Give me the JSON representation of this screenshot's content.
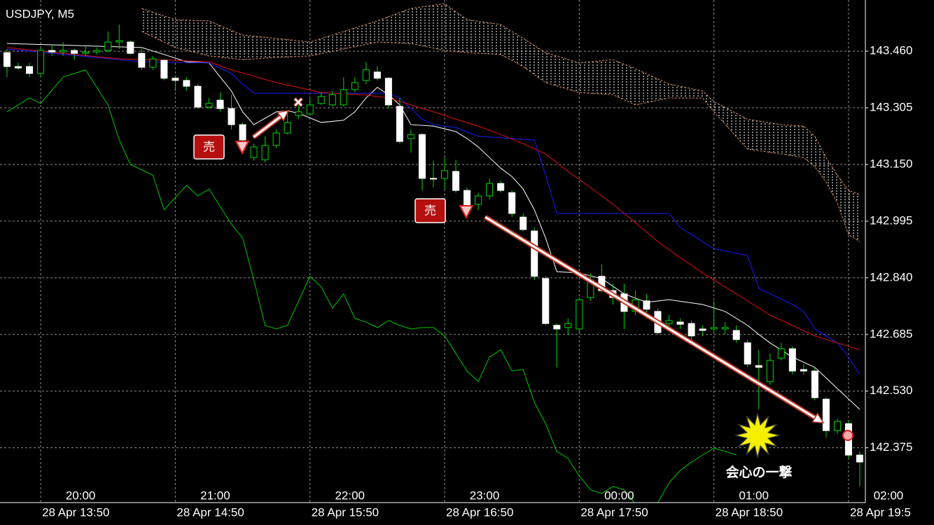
{
  "chart_data": {
    "type": "candlestick",
    "title": "USDJPY, M5",
    "categories": [
      null,
      null,
      null,
      "28 Apr 13:50",
      null,
      null,
      null,
      null,
      null,
      null,
      null,
      null,
      null,
      null,
      null,
      "28 Apr 14:50",
      null,
      null,
      null,
      null,
      null,
      null,
      null,
      null,
      null,
      null,
      null,
      "28 Apr 15:50",
      null,
      null,
      null,
      null,
      null,
      null,
      null,
      null,
      null,
      null,
      null,
      "28 Apr 16:50",
      null,
      null,
      null,
      null,
      null,
      null,
      null,
      null,
      null,
      null,
      null,
      "28 Apr 17:50",
      null,
      null,
      null,
      null,
      null,
      null,
      null,
      null,
      null,
      null,
      null,
      "28 Apr 18:50",
      null,
      null,
      null,
      null,
      null,
      null,
      null,
      null,
      null,
      null,
      null,
      "28 Apr 19:5",
      null
    ],
    "categories_upper": [
      null,
      null,
      null,
      "20:00",
      null,
      null,
      null,
      null,
      null,
      null,
      null,
      null,
      null,
      null,
      null,
      "21:00",
      null,
      null,
      null,
      null,
      null,
      null,
      null,
      null,
      null,
      null,
      null,
      "22:00",
      null,
      null,
      null,
      null,
      null,
      null,
      null,
      null,
      null,
      null,
      null,
      "23:00",
      null,
      null,
      null,
      null,
      null,
      null,
      null,
      null,
      null,
      null,
      null,
      "00:00",
      null,
      null,
      null,
      null,
      null,
      null,
      null,
      null,
      null,
      null,
      null,
      "01:00",
      null,
      null,
      null,
      null,
      null,
      null,
      null,
      null,
      null,
      null,
      null,
      "02:00",
      null
    ],
    "open": [
      143.456,
      143.418,
      143.418,
      143.399,
      143.462,
      143.458,
      143.462,
      143.454,
      143.458,
      143.462,
      143.485,
      143.485,
      143.454,
      143.416,
      143.435,
      143.386,
      143.38,
      143.364,
      143.307,
      143.326,
      143.303,
      143.259,
      143.169,
      143.163,
      143.202,
      143.236,
      143.284,
      143.288,
      143.317,
      143.313,
      143.313,
      143.355,
      143.38,
      143.403,
      143.386,
      143.309,
      143.221,
      143.232,
      143.112,
      143.112,
      143.131,
      143.079,
      143.041,
      143.064,
      143.098,
      143.073,
      143.006,
      142.968,
      142.838,
      142.71,
      142.704,
      142.7,
      142.786,
      142.844,
      142.805,
      142.796,
      142.748,
      142.777,
      142.748,
      142.715,
      142.719,
      142.715,
      142.7,
      142.7,
      142.7,
      142.696,
      142.662,
      142.6,
      142.556,
      142.62,
      142.646,
      142.589,
      142.585,
      142.508,
      142.422,
      142.441,
      142.355
    ],
    "high": [
      143.466,
      143.428,
      143.428,
      143.47,
      143.476,
      143.485,
      143.466,
      143.476,
      143.47,
      143.514,
      143.533,
      143.489,
      143.466,
      143.447,
      143.437,
      143.393,
      143.389,
      143.37,
      143.332,
      143.347,
      143.341,
      143.265,
      143.207,
      143.227,
      143.246,
      143.294,
      143.313,
      143.332,
      143.347,
      143.351,
      143.389,
      143.389,
      143.431,
      143.418,
      143.389,
      143.332,
      143.246,
      143.236,
      143.16,
      143.169,
      143.163,
      143.087,
      143.073,
      143.112,
      143.106,
      143.079,
      143.016,
      142.978,
      142.844,
      142.715,
      142.729,
      142.786,
      142.853,
      142.876,
      142.824,
      142.824,
      142.805,
      142.796,
      142.757,
      142.738,
      142.729,
      142.723,
      142.71,
      142.777,
      142.719,
      142.71,
      142.671,
      142.643,
      142.633,
      142.662,
      142.652,
      142.604,
      142.595,
      142.512,
      142.455,
      142.451,
      142.365
    ],
    "low": [
      143.389,
      143.409,
      143.389,
      143.389,
      143.447,
      143.447,
      143.437,
      143.447,
      143.451,
      143.456,
      143.466,
      143.451,
      143.409,
      143.409,
      143.38,
      143.351,
      143.351,
      143.303,
      143.303,
      143.294,
      143.246,
      143.188,
      143.16,
      143.156,
      143.194,
      143.232,
      143.274,
      143.284,
      143.313,
      143.309,
      143.309,
      143.347,
      143.37,
      143.38,
      143.303,
      143.207,
      143.183,
      143.079,
      143.087,
      143.083,
      143.073,
      143.026,
      143.026,
      143.054,
      143.073,
      143.006,
      142.968,
      142.834,
      142.71,
      142.595,
      142.685,
      142.69,
      142.777,
      142.8,
      142.767,
      142.7,
      142.738,
      142.729,
      142.685,
      142.7,
      142.7,
      142.671,
      142.681,
      142.69,
      142.685,
      142.662,
      142.595,
      142.48,
      142.547,
      142.614,
      142.575,
      142.575,
      142.505,
      142.403,
      142.413,
      142.346,
      142.269
    ],
    "close": [
      143.418,
      143.414,
      143.399,
      143.462,
      143.458,
      143.462,
      143.454,
      143.458,
      143.462,
      143.485,
      143.489,
      143.454,
      143.416,
      143.439,
      143.386,
      143.38,
      143.364,
      143.307,
      143.317,
      143.303,
      143.259,
      143.217,
      143.198,
      143.202,
      143.236,
      143.265,
      143.294,
      143.313,
      143.336,
      143.341,
      143.355,
      143.374,
      143.409,
      143.386,
      143.313,
      143.213,
      143.232,
      143.112,
      143.11,
      143.133,
      143.079,
      143.035,
      143.064,
      143.098,
      143.079,
      143.016,
      142.972,
      142.844,
      142.715,
      142.7,
      142.715,
      142.78,
      142.834,
      142.805,
      142.786,
      142.748,
      142.78,
      142.754,
      142.69,
      142.723,
      142.713,
      142.681,
      142.696,
      142.704,
      142.704,
      142.671,
      142.604,
      142.595,
      142.614,
      142.646,
      142.585,
      142.585,
      142.512,
      142.422,
      142.447,
      142.355,
      142.336
    ],
    "up_color": "#000000",
    "down_color": "#ffffff",
    "wick_color": "#00d800",
    "lines": [
      {
        "color": "#ffffff",
        "x": [
          0,
          12,
          14,
          16,
          18,
          20,
          21,
          22,
          24,
          25,
          26,
          28,
          30,
          31,
          32,
          33,
          34,
          35,
          36,
          38,
          40,
          41,
          42,
          43,
          44,
          45,
          46,
          47,
          48,
          49,
          51,
          53,
          55,
          57,
          59,
          62,
          64,
          66,
          67,
          68,
          70,
          72,
          74,
          76
        ],
        "values": [
          143.481,
          143.47,
          143.451,
          143.431,
          143.428,
          143.351,
          143.294,
          143.259,
          143.294,
          143.297,
          143.29,
          143.265,
          143.271,
          143.294,
          143.332,
          143.361,
          143.341,
          143.313,
          143.259,
          143.255,
          143.24,
          143.221,
          143.198,
          143.169,
          143.14,
          143.117,
          143.083,
          143.026,
          142.949,
          142.857,
          142.853,
          142.838,
          142.796,
          142.773,
          142.78,
          142.767,
          142.748,
          142.71,
          142.685,
          142.662,
          142.623,
          142.595,
          142.537,
          142.48
        ]
      },
      {
        "color": "#1a1aff",
        "x": [
          0,
          12,
          18,
          20,
          21,
          22,
          34,
          35,
          36,
          37,
          38,
          40,
          42,
          47,
          48,
          49,
          59,
          60,
          62,
          63,
          66,
          67,
          70,
          71,
          72,
          74,
          75,
          76
        ],
        "values": [
          143.466,
          143.431,
          143.428,
          143.399,
          143.37,
          143.345,
          143.345,
          143.332,
          143.303,
          143.274,
          143.259,
          143.251,
          143.227,
          143.217,
          143.121,
          143.016,
          143.016,
          142.978,
          142.939,
          142.92,
          142.901,
          142.811,
          142.767,
          142.748,
          142.7,
          142.662,
          142.623,
          142.575
        ]
      },
      {
        "color": "#e01010",
        "x": [
          0,
          5,
          10,
          15,
          18,
          20,
          24,
          28,
          32,
          34,
          36,
          38,
          40,
          42,
          44,
          46,
          48,
          50,
          52,
          54,
          56,
          58,
          60,
          62,
          64,
          66,
          68,
          70,
          72,
          74,
          76
        ],
        "values": [
          143.47,
          143.454,
          143.439,
          143.435,
          143.431,
          143.409,
          143.374,
          143.347,
          143.34,
          143.332,
          143.313,
          143.294,
          143.274,
          143.255,
          143.232,
          143.207,
          143.179,
          143.131,
          143.087,
          143.041,
          142.991,
          142.939,
          142.895,
          142.853,
          142.815,
          142.777,
          142.738,
          142.71,
          142.681,
          142.662,
          142.643
        ]
      },
      {
        "color": "#00c800",
        "x": [
          0,
          2,
          3,
          5,
          7,
          9,
          10,
          11,
          13,
          14,
          16,
          17,
          18,
          20,
          21,
          22,
          23,
          24,
          25,
          26,
          27,
          28,
          29,
          30,
          31,
          32,
          33,
          34,
          35,
          36,
          37,
          38,
          39,
          40,
          41,
          42,
          43,
          44,
          45,
          46,
          47,
          48,
          49,
          50,
          51,
          52,
          53,
          54,
          55,
          56,
          57,
          58,
          59,
          60,
          61,
          62,
          63,
          64,
          65
        ],
        "values": [
          143.294,
          143.332,
          143.317,
          143.389,
          143.409,
          143.313,
          143.217,
          143.15,
          143.121,
          143.026,
          143.093,
          143.064,
          143.083,
          142.987,
          142.949,
          142.834,
          142.71,
          142.7,
          142.71,
          142.777,
          142.844,
          142.815,
          142.757,
          142.796,
          142.729,
          142.719,
          142.704,
          142.723,
          142.71,
          142.7,
          142.704,
          142.704,
          142.681,
          142.633,
          142.585,
          142.556,
          142.623,
          142.643,
          142.585,
          142.589,
          142.499,
          142.441,
          142.365,
          142.346,
          142.298,
          142.26,
          142.25,
          142.269,
          142.26,
          142.221,
          142.183,
          142.225,
          142.279,
          142.313,
          142.336,
          142.355,
          142.374,
          142.365,
          142.355
        ]
      }
    ],
    "cloud": {
      "color": "#d98a6a",
      "hatch_color": "#ffffff",
      "x": [
        12,
        15,
        18,
        21,
        24,
        27,
        30,
        33,
        36,
        39,
        41,
        44,
        46,
        48,
        51,
        54,
        56,
        59,
        62,
        63,
        66,
        69,
        71,
        72,
        73,
        74,
        75,
        76
      ],
      "upper": [
        143.577,
        143.546,
        143.543,
        143.504,
        143.495,
        143.485,
        143.514,
        143.543,
        143.577,
        143.59,
        143.546,
        143.533,
        143.495,
        143.456,
        143.428,
        143.437,
        143.412,
        143.37,
        143.351,
        143.322,
        143.274,
        143.259,
        143.255,
        143.227,
        143.169,
        143.121,
        143.079,
        143.068
      ],
      "lower": [
        143.514,
        143.47,
        143.447,
        143.437,
        143.443,
        143.447,
        143.466,
        143.485,
        143.481,
        143.462,
        143.456,
        143.451,
        143.418,
        143.374,
        143.347,
        143.341,
        143.313,
        143.332,
        143.332,
        143.294,
        143.192,
        143.179,
        143.169,
        143.144,
        143.102,
        143.045,
        142.958,
        142.939
      ]
    },
    "ylim": [
      142.225,
      143.6
    ],
    "yticks": [
      {
        "value": 143.46,
        "label": "143.460"
      },
      143.305,
      {
        "value": 143.15,
        "label": "143.150"
      },
      142.995,
      {
        "value": 142.84,
        "label": "142.840"
      },
      142.685,
      {
        "value": 142.53,
        "label": "142.530"
      },
      142.375
    ],
    "grid": true,
    "grid_color": "#8c8c8c",
    "annotations": [
      "売",
      "売",
      "会心の一撃"
    ]
  }
}
